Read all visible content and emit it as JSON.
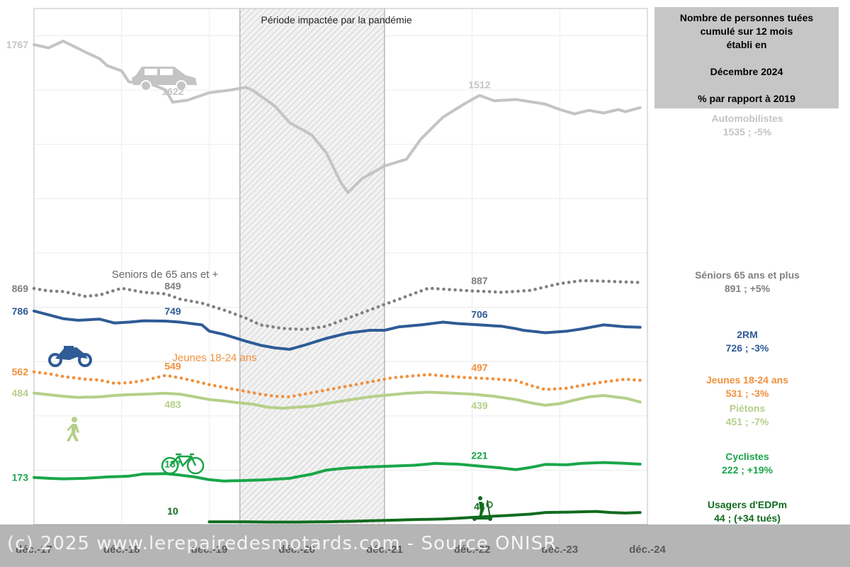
{
  "pandemic_label": "Période impactée par la pandémie",
  "legend": {
    "line1": "Nombre de personnes tuées",
    "line2": "cumulé sur 12 mois",
    "line3": "établi en",
    "line4": "Décembre 2024",
    "line5": "% par rapport à 2019"
  },
  "right_labels": [
    {
      "name": "Automobilistes",
      "value": "1535 ; -5%",
      "color": "#c4c4c4"
    },
    {
      "name": "Séniors 65 ans et plus",
      "value": "891 ; +5%",
      "color": "#7f7f7f"
    },
    {
      "name": "2RM",
      "value": "726 ; -3%",
      "color": "#2f5b96"
    },
    {
      "name": "Jeunes 18-24 ans",
      "value": "531 ; -3%",
      "color": "#f0903c"
    },
    {
      "name": "Piétons",
      "value": "451 ; -7%",
      "color": "#b5cf8a"
    },
    {
      "name": "Cyclistes",
      "value": "222 ; +19%",
      "color": "#1aa64a"
    },
    {
      "name": "Usagers d'EDPm",
      "value": "44 ; (+34 tués)",
      "color": "#116b1e"
    }
  ],
  "watermark": "(c) 2025 www.lerepairedesmotards.com - Source ONISR",
  "chart_data": {
    "type": "line",
    "x_ticks": [
      "déc.-17",
      "déc.-18",
      "déc.-19",
      "déc.-20",
      "déc.-21",
      "déc.-22",
      "déc.-23",
      "déc.-24"
    ],
    "x_start": "déc.-17",
    "x_end": "déc.-24",
    "months": 84,
    "ylim": [
      0,
      1900
    ],
    "shaded_period": {
      "from": "avr.-20",
      "to": "déc.-21"
    },
    "series_labels": {
      "seniors": "Seniors de 65 ans et +",
      "jeunes": "Jeunes 18-24 ans"
    },
    "series": [
      {
        "key": "auto",
        "name": "Automobilistes",
        "color": "#c4c4c4",
        "style": "solid",
        "anchors": [
          [
            0,
            1767
          ],
          [
            2,
            1755
          ],
          [
            4,
            1780
          ],
          [
            7,
            1740
          ],
          [
            9,
            1715
          ],
          [
            10,
            1690
          ],
          [
            12,
            1670
          ],
          [
            13,
            1630
          ],
          [
            16,
            1622
          ],
          [
            18,
            1600
          ],
          [
            19,
            1555
          ],
          [
            21,
            1562
          ],
          [
            24,
            1590
          ],
          [
            27,
            1600
          ],
          [
            29,
            1610
          ],
          [
            30,
            1598
          ],
          [
            33,
            1540
          ],
          [
            35,
            1480
          ],
          [
            38,
            1435
          ],
          [
            40,
            1370
          ],
          [
            42,
            1260
          ],
          [
            43,
            1222
          ],
          [
            45,
            1275
          ],
          [
            48,
            1320
          ],
          [
            51,
            1345
          ],
          [
            53,
            1420
          ],
          [
            56,
            1500
          ],
          [
            59,
            1550
          ],
          [
            61,
            1580
          ],
          [
            63,
            1560
          ],
          [
            66,
            1565
          ],
          [
            70,
            1548
          ],
          [
            72,
            1528
          ],
          [
            74,
            1512
          ],
          [
            76,
            1525
          ],
          [
            78,
            1515
          ],
          [
            80,
            1528
          ],
          [
            81,
            1520
          ],
          [
            83,
            1535
          ]
        ]
      },
      {
        "key": "seniors",
        "name": "Séniors 65 ans et plus",
        "color": "#7f7f7f",
        "style": "dotted",
        "anchors": [
          [
            0,
            869
          ],
          [
            2,
            860
          ],
          [
            4,
            858
          ],
          [
            7,
            840
          ],
          [
            9,
            845
          ],
          [
            12,
            870
          ],
          [
            15,
            855
          ],
          [
            18,
            849
          ],
          [
            20,
            830
          ],
          [
            23,
            815
          ],
          [
            26,
            790
          ],
          [
            29,
            760
          ],
          [
            31,
            735
          ],
          [
            34,
            722
          ],
          [
            37,
            718
          ],
          [
            40,
            730
          ],
          [
            43,
            760
          ],
          [
            46,
            790
          ],
          [
            49,
            820
          ],
          [
            52,
            850
          ],
          [
            54,
            870
          ],
          [
            57,
            865
          ],
          [
            60,
            860
          ],
          [
            62,
            858
          ],
          [
            64,
            855
          ],
          [
            68,
            862
          ],
          [
            72,
            887
          ],
          [
            75,
            898
          ],
          [
            78,
            896
          ],
          [
            81,
            893
          ],
          [
            83,
            891
          ]
        ]
      },
      {
        "key": "deuxrm",
        "name": "2RM",
        "color": "#2f5b96",
        "style": "solid",
        "anchors": [
          [
            0,
            786
          ],
          [
            2,
            772
          ],
          [
            4,
            758
          ],
          [
            6,
            752
          ],
          [
            9,
            756
          ],
          [
            11,
            742
          ],
          [
            13,
            745
          ],
          [
            15,
            750
          ],
          [
            18,
            749
          ],
          [
            20,
            745
          ],
          [
            23,
            735
          ],
          [
            24,
            712
          ],
          [
            26,
            700
          ],
          [
            29,
            675
          ],
          [
            31,
            660
          ],
          [
            33,
            650
          ],
          [
            35,
            645
          ],
          [
            37,
            660
          ],
          [
            40,
            685
          ],
          [
            43,
            705
          ],
          [
            46,
            715
          ],
          [
            48,
            715
          ],
          [
            50,
            728
          ],
          [
            53,
            735
          ],
          [
            56,
            745
          ],
          [
            58,
            740
          ],
          [
            61,
            735
          ],
          [
            64,
            730
          ],
          [
            66,
            721
          ],
          [
            67,
            715
          ],
          [
            70,
            706
          ],
          [
            73,
            712
          ],
          [
            75,
            720
          ],
          [
            78,
            735
          ],
          [
            81,
            728
          ],
          [
            83,
            726
          ]
        ]
      },
      {
        "key": "jeunes",
        "name": "Jeunes 18-24 ans",
        "color": "#f0903c",
        "style": "dotted",
        "anchors": [
          [
            0,
            562
          ],
          [
            2,
            555
          ],
          [
            4,
            545
          ],
          [
            7,
            535
          ],
          [
            9,
            532
          ],
          [
            11,
            520
          ],
          [
            13,
            522
          ],
          [
            15,
            530
          ],
          [
            18,
            549
          ],
          [
            20,
            540
          ],
          [
            22,
            528
          ],
          [
            24,
            515
          ],
          [
            26,
            505
          ],
          [
            29,
            490
          ],
          [
            31,
            480
          ],
          [
            33,
            472
          ],
          [
            35,
            470
          ],
          [
            37,
            480
          ],
          [
            40,
            495
          ],
          [
            43,
            510
          ],
          [
            46,
            525
          ],
          [
            49,
            540
          ],
          [
            51,
            545
          ],
          [
            54,
            552
          ],
          [
            57,
            545
          ],
          [
            60,
            540
          ],
          [
            63,
            536
          ],
          [
            66,
            530
          ],
          [
            68,
            512
          ],
          [
            70,
            497
          ],
          [
            73,
            502
          ],
          [
            75,
            512
          ],
          [
            78,
            525
          ],
          [
            81,
            535
          ],
          [
            83,
            531
          ]
        ]
      },
      {
        "key": "pietons",
        "name": "Piétons",
        "color": "#b5cf8a",
        "style": "solid",
        "anchors": [
          [
            0,
            484
          ],
          [
            2,
            478
          ],
          [
            4,
            472
          ],
          [
            6,
            468
          ],
          [
            9,
            470
          ],
          [
            11,
            475
          ],
          [
            13,
            478
          ],
          [
            15,
            480
          ],
          [
            18,
            483
          ],
          [
            20,
            480
          ],
          [
            22,
            470
          ],
          [
            24,
            460
          ],
          [
            26,
            455
          ],
          [
            28,
            448
          ],
          [
            30,
            443
          ],
          [
            32,
            432
          ],
          [
            34,
            428
          ],
          [
            36,
            432
          ],
          [
            38,
            435
          ],
          [
            40,
            445
          ],
          [
            43,
            458
          ],
          [
            46,
            470
          ],
          [
            49,
            478
          ],
          [
            51,
            483
          ],
          [
            54,
            487
          ],
          [
            57,
            484
          ],
          [
            60,
            480
          ],
          [
            63,
            472
          ],
          [
            66,
            460
          ],
          [
            68,
            448
          ],
          [
            70,
            439
          ],
          [
            72,
            445
          ],
          [
            74,
            458
          ],
          [
            76,
            470
          ],
          [
            78,
            475
          ],
          [
            81,
            465
          ],
          [
            83,
            451
          ]
        ]
      },
      {
        "key": "cyclistes",
        "name": "Cyclistes",
        "color": "#1aa64a",
        "style": "solid",
        "anchors": [
          [
            0,
            173
          ],
          [
            2,
            170
          ],
          [
            4,
            168
          ],
          [
            7,
            170
          ],
          [
            10,
            175
          ],
          [
            13,
            178
          ],
          [
            15,
            186
          ],
          [
            18,
            187
          ],
          [
            20,
            182
          ],
          [
            22,
            175
          ],
          [
            24,
            165
          ],
          [
            26,
            160
          ],
          [
            29,
            162
          ],
          [
            32,
            165
          ],
          [
            35,
            170
          ],
          [
            38,
            185
          ],
          [
            40,
            200
          ],
          [
            43,
            208
          ],
          [
            46,
            212
          ],
          [
            49,
            215
          ],
          [
            52,
            218
          ],
          [
            55,
            225
          ],
          [
            58,
            222
          ],
          [
            61,
            215
          ],
          [
            64,
            208
          ],
          [
            66,
            202
          ],
          [
            68,
            210
          ],
          [
            70,
            221
          ],
          [
            73,
            220
          ],
          [
            75,
            225
          ],
          [
            78,
            228
          ],
          [
            81,
            225
          ],
          [
            83,
            222
          ]
        ]
      },
      {
        "key": "edpm",
        "name": "Usagers d'EDPm",
        "color": "#116b1e",
        "style": "solid",
        "start": 24,
        "anchors": [
          [
            24,
            10
          ],
          [
            28,
            10
          ],
          [
            32,
            9
          ],
          [
            36,
            9
          ],
          [
            40,
            10
          ],
          [
            44,
            12
          ],
          [
            48,
            15
          ],
          [
            52,
            18
          ],
          [
            56,
            20
          ],
          [
            60,
            26
          ],
          [
            64,
            32
          ],
          [
            68,
            38
          ],
          [
            70,
            44
          ],
          [
            74,
            46
          ],
          [
            77,
            48
          ],
          [
            79,
            44
          ],
          [
            81,
            42
          ],
          [
            83,
            44
          ]
        ]
      }
    ],
    "annotations": [
      {
        "series": "auto",
        "x": 0,
        "text": "1767",
        "pos": "left"
      },
      {
        "series": "auto",
        "x": 19,
        "text": "1622",
        "pos": "above"
      },
      {
        "series": "auto",
        "x": 61,
        "text": "1512",
        "pos": "above"
      },
      {
        "series": "seniors",
        "x": 0,
        "text": "869",
        "pos": "left"
      },
      {
        "series": "seniors",
        "x": 19,
        "text": "849",
        "pos": "above"
      },
      {
        "series": "seniors",
        "x": 61,
        "text": "887",
        "pos": "above"
      },
      {
        "series": "deuxrm",
        "x": 0,
        "text": "786",
        "pos": "left"
      },
      {
        "series": "deuxrm",
        "x": 19,
        "text": "749",
        "pos": "above"
      },
      {
        "series": "deuxrm",
        "x": 61,
        "text": "706",
        "pos": "above"
      },
      {
        "series": "jeunes",
        "x": 0,
        "text": "562",
        "pos": "left"
      },
      {
        "series": "jeunes",
        "x": 19,
        "text": "549",
        "pos": "above"
      },
      {
        "series": "jeunes",
        "x": 61,
        "text": "497",
        "pos": "above"
      },
      {
        "series": "pietons",
        "x": 0,
        "text": "484",
        "pos": "left"
      },
      {
        "series": "pietons",
        "x": 19,
        "text": "483",
        "pos": "below"
      },
      {
        "series": "pietons",
        "x": 61,
        "text": "439",
        "pos": "below"
      },
      {
        "series": "cyclistes",
        "x": 0,
        "text": "173",
        "pos": "left"
      },
      {
        "series": "cyclistes",
        "x": 19,
        "text": "187",
        "pos": "above"
      },
      {
        "series": "cyclistes",
        "x": 61,
        "text": "221",
        "pos": "above"
      },
      {
        "series": "edpm",
        "x": 19,
        "text": "10",
        "pos": "above"
      },
      {
        "series": "edpm",
        "x": 61,
        "text": "44",
        "pos": "above"
      }
    ]
  }
}
